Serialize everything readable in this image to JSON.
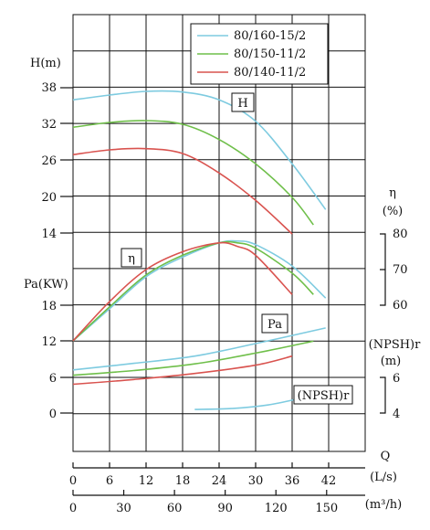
{
  "chart_data": {
    "type": "line",
    "title": "",
    "legend": {
      "placement": "top-right",
      "entries": [
        {
          "name": "80/160-15/2",
          "color": "#7ecbe0"
        },
        {
          "name": "80/150-11/2",
          "color": "#6fbf4a"
        },
        {
          "name": "80/140-11/2",
          "color": "#d9534f"
        }
      ]
    },
    "axes": {
      "q_ls": {
        "label": "(L/s)",
        "ticks": [
          "0",
          "6",
          "12",
          "18",
          "24",
          "30",
          "36",
          "42"
        ],
        "range": [
          0,
          48
        ]
      },
      "q_m3h": {
        "label": "(m³/h)",
        "ticks": [
          "0",
          "30",
          "60",
          "90",
          "120",
          "150"
        ],
        "values": [
          0,
          30,
          60,
          90,
          120,
          150
        ]
      },
      "q_title": "Q",
      "head": {
        "label": "H(m)",
        "ticks": [
          "14",
          "20",
          "26",
          "32",
          "38"
        ]
      },
      "power": {
        "label": "Pa(KW)",
        "ticks": [
          "0",
          "6",
          "12",
          "18"
        ]
      },
      "eff": {
        "label": "η",
        "unit": "(%)",
        "ticks": [
          "80",
          "70",
          "60"
        ]
      },
      "npsh": {
        "label": "(NPSH)r",
        "unit": "(m)",
        "ticks": [
          "6",
          "4"
        ]
      }
    },
    "curve_labels": {
      "head": "H",
      "eff": "η",
      "power": "Pa",
      "npsh": "(NPSH)r"
    },
    "grid": true,
    "series": [
      {
        "name": "80/160-15/2",
        "color": "#7ecbe0",
        "head": [
          [
            0,
            36
          ],
          [
            6,
            36.8
          ],
          [
            12,
            37.4
          ],
          [
            18,
            37.3
          ],
          [
            24,
            36
          ],
          [
            30,
            32.5
          ],
          [
            36,
            25.5
          ],
          [
            41.5,
            18
          ]
        ],
        "efficiency": [
          [
            0,
            50
          ],
          [
            6,
            59
          ],
          [
            12,
            68
          ],
          [
            18,
            73.5
          ],
          [
            24,
            77.5
          ],
          [
            27,
            78
          ],
          [
            30,
            77
          ],
          [
            36,
            71
          ],
          [
            41.5,
            62
          ]
        ],
        "power": [
          [
            0,
            7.2
          ],
          [
            10,
            8.3
          ],
          [
            20,
            9.5
          ],
          [
            30,
            11.6
          ],
          [
            41.5,
            14.2
          ]
        ],
        "npsh": [
          [
            20,
            4.2
          ],
          [
            26,
            4.25
          ],
          [
            32,
            4.45
          ],
          [
            37,
            4.8
          ],
          [
            41.5,
            5.2
          ]
        ]
      },
      {
        "name": "80/150-11/2",
        "color": "#6fbf4a",
        "head": [
          [
            0,
            31.5
          ],
          [
            6,
            32.3
          ],
          [
            12,
            32.6
          ],
          [
            18,
            32
          ],
          [
            24,
            29.5
          ],
          [
            30,
            25.5
          ],
          [
            36,
            20
          ],
          [
            39.5,
            15.5
          ]
        ],
        "efficiency": [
          [
            0,
            50
          ],
          [
            6,
            59.5
          ],
          [
            12,
            68.5
          ],
          [
            18,
            74
          ],
          [
            24,
            77.5
          ],
          [
            27,
            77.5
          ],
          [
            30,
            76
          ],
          [
            36,
            69
          ],
          [
            39.5,
            63
          ]
        ],
        "power": [
          [
            0,
            6.3
          ],
          [
            10,
            7.1
          ],
          [
            20,
            8.2
          ],
          [
            30,
            10
          ],
          [
            39.5,
            12
          ]
        ],
        "npsh": []
      },
      {
        "name": "80/140-11/2",
        "color": "#d9534f",
        "head": [
          [
            0,
            27
          ],
          [
            6,
            27.8
          ],
          [
            12,
            28
          ],
          [
            18,
            27.2
          ],
          [
            24,
            24
          ],
          [
            30,
            19.5
          ],
          [
            36,
            14
          ]
        ],
        "efficiency": [
          [
            0,
            50
          ],
          [
            6,
            61
          ],
          [
            12,
            70
          ],
          [
            18,
            75
          ],
          [
            24,
            77.5
          ],
          [
            27,
            76.5
          ],
          [
            30,
            74
          ],
          [
            36,
            63
          ]
        ],
        "power": [
          [
            0,
            4.8
          ],
          [
            10,
            5.6
          ],
          [
            20,
            6.6
          ],
          [
            30,
            8
          ],
          [
            36,
            9.5
          ]
        ],
        "npsh": []
      }
    ]
  }
}
